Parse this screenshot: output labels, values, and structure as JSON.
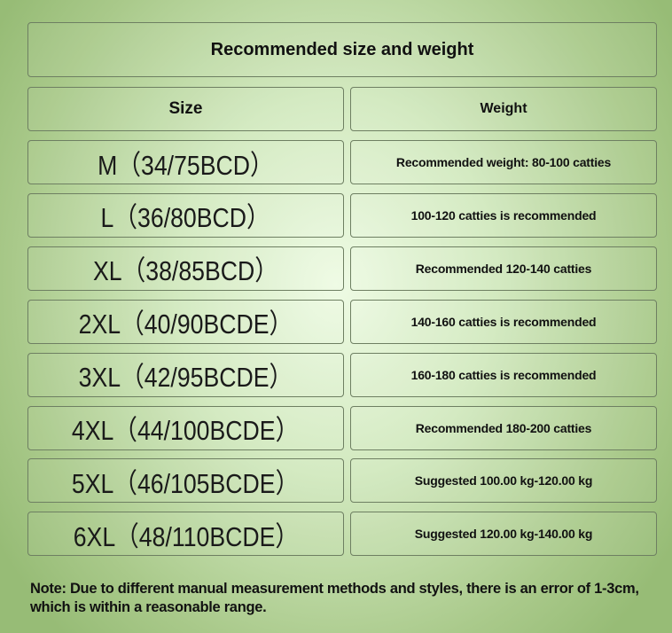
{
  "title": "Recommended size and weight",
  "headers": {
    "size": "Size",
    "weight": "Weight"
  },
  "rows": [
    {
      "size": "M（34/75BCD）",
      "weight": "Recommended weight: 80-100 catties"
    },
    {
      "size": "L（36/80BCD）",
      "weight": "100-120 catties is recommended"
    },
    {
      "size": "XL（38/85BCD）",
      "weight": "Recommended 120-140 catties"
    },
    {
      "size": "2XL（40/90BCDE）",
      "weight": "140-160 catties is recommended"
    },
    {
      "size": "3XL（42/95BCDE）",
      "weight": "160-180 catties is recommended"
    },
    {
      "size": "4XL（44/100BCDE）",
      "weight": "Recommended 180-200 catties"
    },
    {
      "size": "5XL（46/105BCDE）",
      "weight": "Suggested 100.00 kg-120.00 kg"
    },
    {
      "size": "6XL（48/110BCDE）",
      "weight": "Suggested 120.00 kg-140.00 kg"
    }
  ],
  "note": "Note: Due to different manual measurement methods and styles, there is an error of 1-3cm, which is within a reasonable range.",
  "colors": {
    "background_center": "#eefbe4",
    "background_edge": "#97bc76",
    "border": "#6e7f62"
  }
}
